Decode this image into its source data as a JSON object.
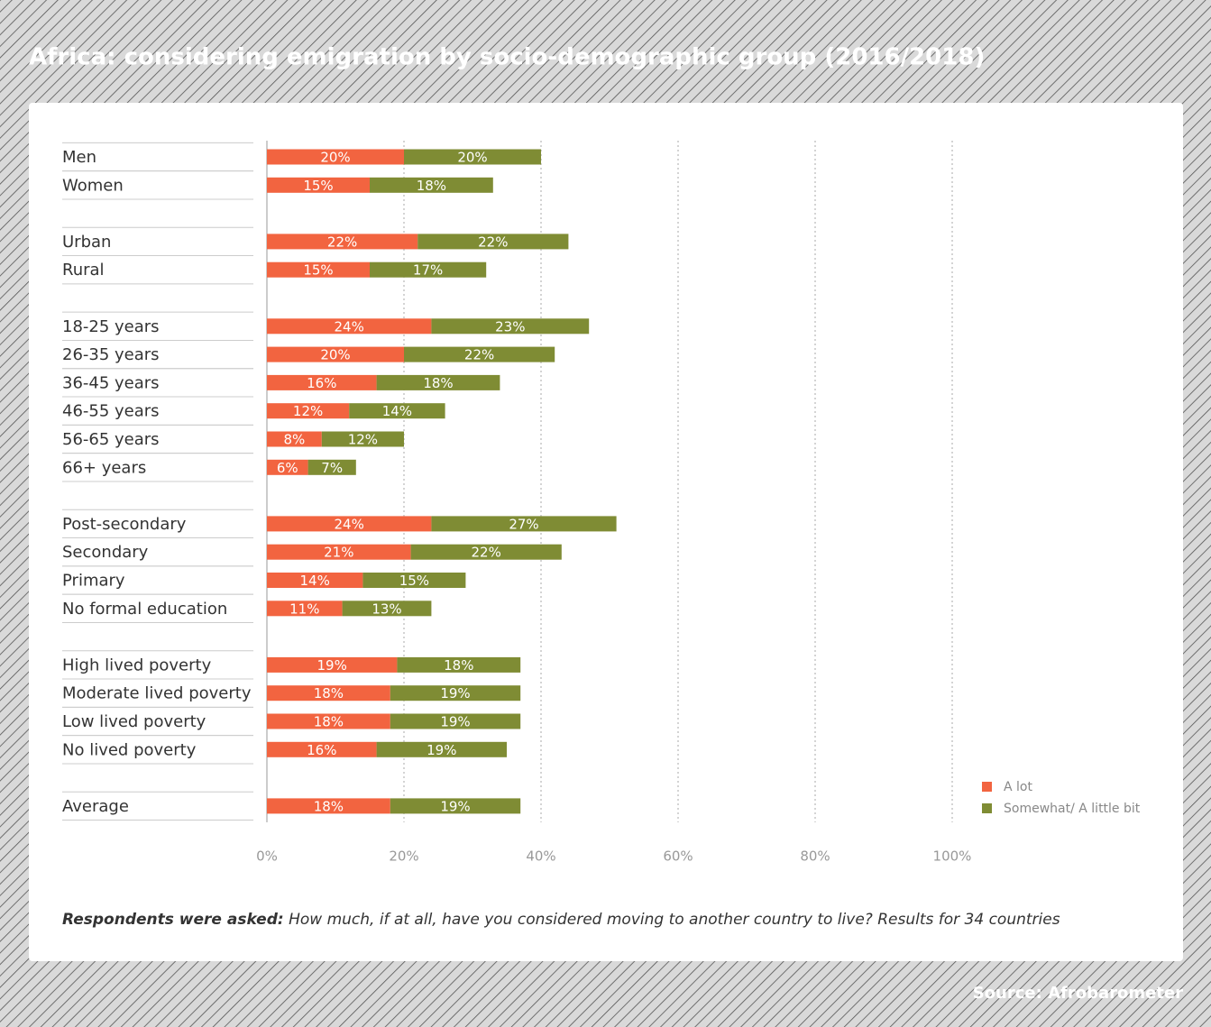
{
  "chart_data": {
    "type": "stacked-bar-horizontal",
    "title": "Africa: considering emigration by socio-demographic group (2016/2018)",
    "note_lead": "Respondents were asked:",
    "note": "How much, if at all, have you considered moving to another country to live? Results for 34 countries",
    "source": "Source: Afrobarometer",
    "categories": [
      "Men",
      "Women",
      null,
      "Urban",
      "Rural",
      null,
      "18-25 years",
      "26-35 years",
      "36-45 years",
      "46-55 years",
      "56-65 years",
      "66+ years",
      null,
      "Post-secondary",
      "Secondary",
      "Primary",
      "No formal education",
      null,
      "High lived poverty",
      "Moderate lived poverty",
      "Low lived poverty",
      "No lived poverty",
      null,
      "Average"
    ],
    "series": [
      {
        "name": "A lot",
        "color": "#f26440",
        "values": [
          20,
          15,
          null,
          22,
          15,
          null,
          24,
          20,
          16,
          12,
          8,
          6,
          null,
          24,
          21,
          14,
          11,
          null,
          19,
          18,
          18,
          16,
          null,
          18
        ],
        "value_labels": [
          "20%",
          "15%",
          null,
          "22%",
          "15%",
          null,
          "24%",
          "20%",
          "16%",
          "12%",
          "8%",
          "6%",
          null,
          "24%",
          "21%",
          "14%",
          "11%",
          null,
          "19%",
          "18%",
          "18%",
          "16%",
          null,
          "18%"
        ]
      },
      {
        "name": "Somewhat/ A little bit",
        "color": "#7f8c34",
        "values": [
          20,
          18,
          null,
          22,
          17,
          null,
          23,
          22,
          18,
          14,
          12,
          7,
          null,
          27,
          22,
          15,
          13,
          null,
          18,
          19,
          19,
          19,
          null,
          19
        ],
        "value_labels": [
          "20%",
          "18%",
          null,
          "22%",
          "17%",
          null,
          "23%",
          "22%",
          "18%",
          "14%",
          "12%",
          "7%",
          null,
          "27%",
          "22%",
          "15%",
          "13%",
          null,
          "18%",
          "19%",
          "19%",
          "19%",
          null,
          "19%"
        ]
      }
    ],
    "xlim": [
      0,
      100
    ],
    "xticks": [
      {
        "value": 0,
        "label": "0%"
      },
      {
        "value": 20,
        "label": "20%"
      },
      {
        "value": 40,
        "label": "40%"
      },
      {
        "value": 60,
        "label": "60%"
      },
      {
        "value": 80,
        "label": "80%"
      },
      {
        "value": 100,
        "label": "100%"
      }
    ],
    "grid": true,
    "legend": "bottom-right"
  }
}
